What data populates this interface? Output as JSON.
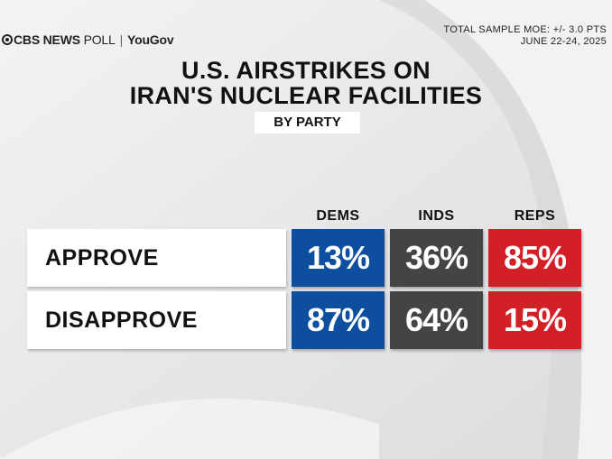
{
  "header": {
    "brand_cbs": "CBS NEWS",
    "brand_poll": "POLL",
    "brand_partner": "YouGov",
    "moe": "TOTAL SAMPLE MOE: +/- 3.0 PTS",
    "dates": "JUNE 22-24, 2025"
  },
  "chart_data": {
    "type": "table",
    "title_line1": "U.S. AIRSTRIKES ON",
    "title_line2": "IRAN'S NUCLEAR FACILITIES",
    "subtitle": "BY PARTY",
    "columns": [
      "DEMS",
      "INDS",
      "REPS"
    ],
    "column_colors": [
      "#0d4f9e",
      "#444444",
      "#d31f26"
    ],
    "rows": [
      {
        "label": "APPROVE",
        "values": [
          13,
          36,
          85
        ],
        "display": [
          "13%",
          "36%",
          "85%"
        ]
      },
      {
        "label": "DISAPPROVE",
        "values": [
          87,
          64,
          15
        ],
        "display": [
          "87%",
          "64%",
          "15%"
        ]
      }
    ],
    "unit": "%"
  }
}
